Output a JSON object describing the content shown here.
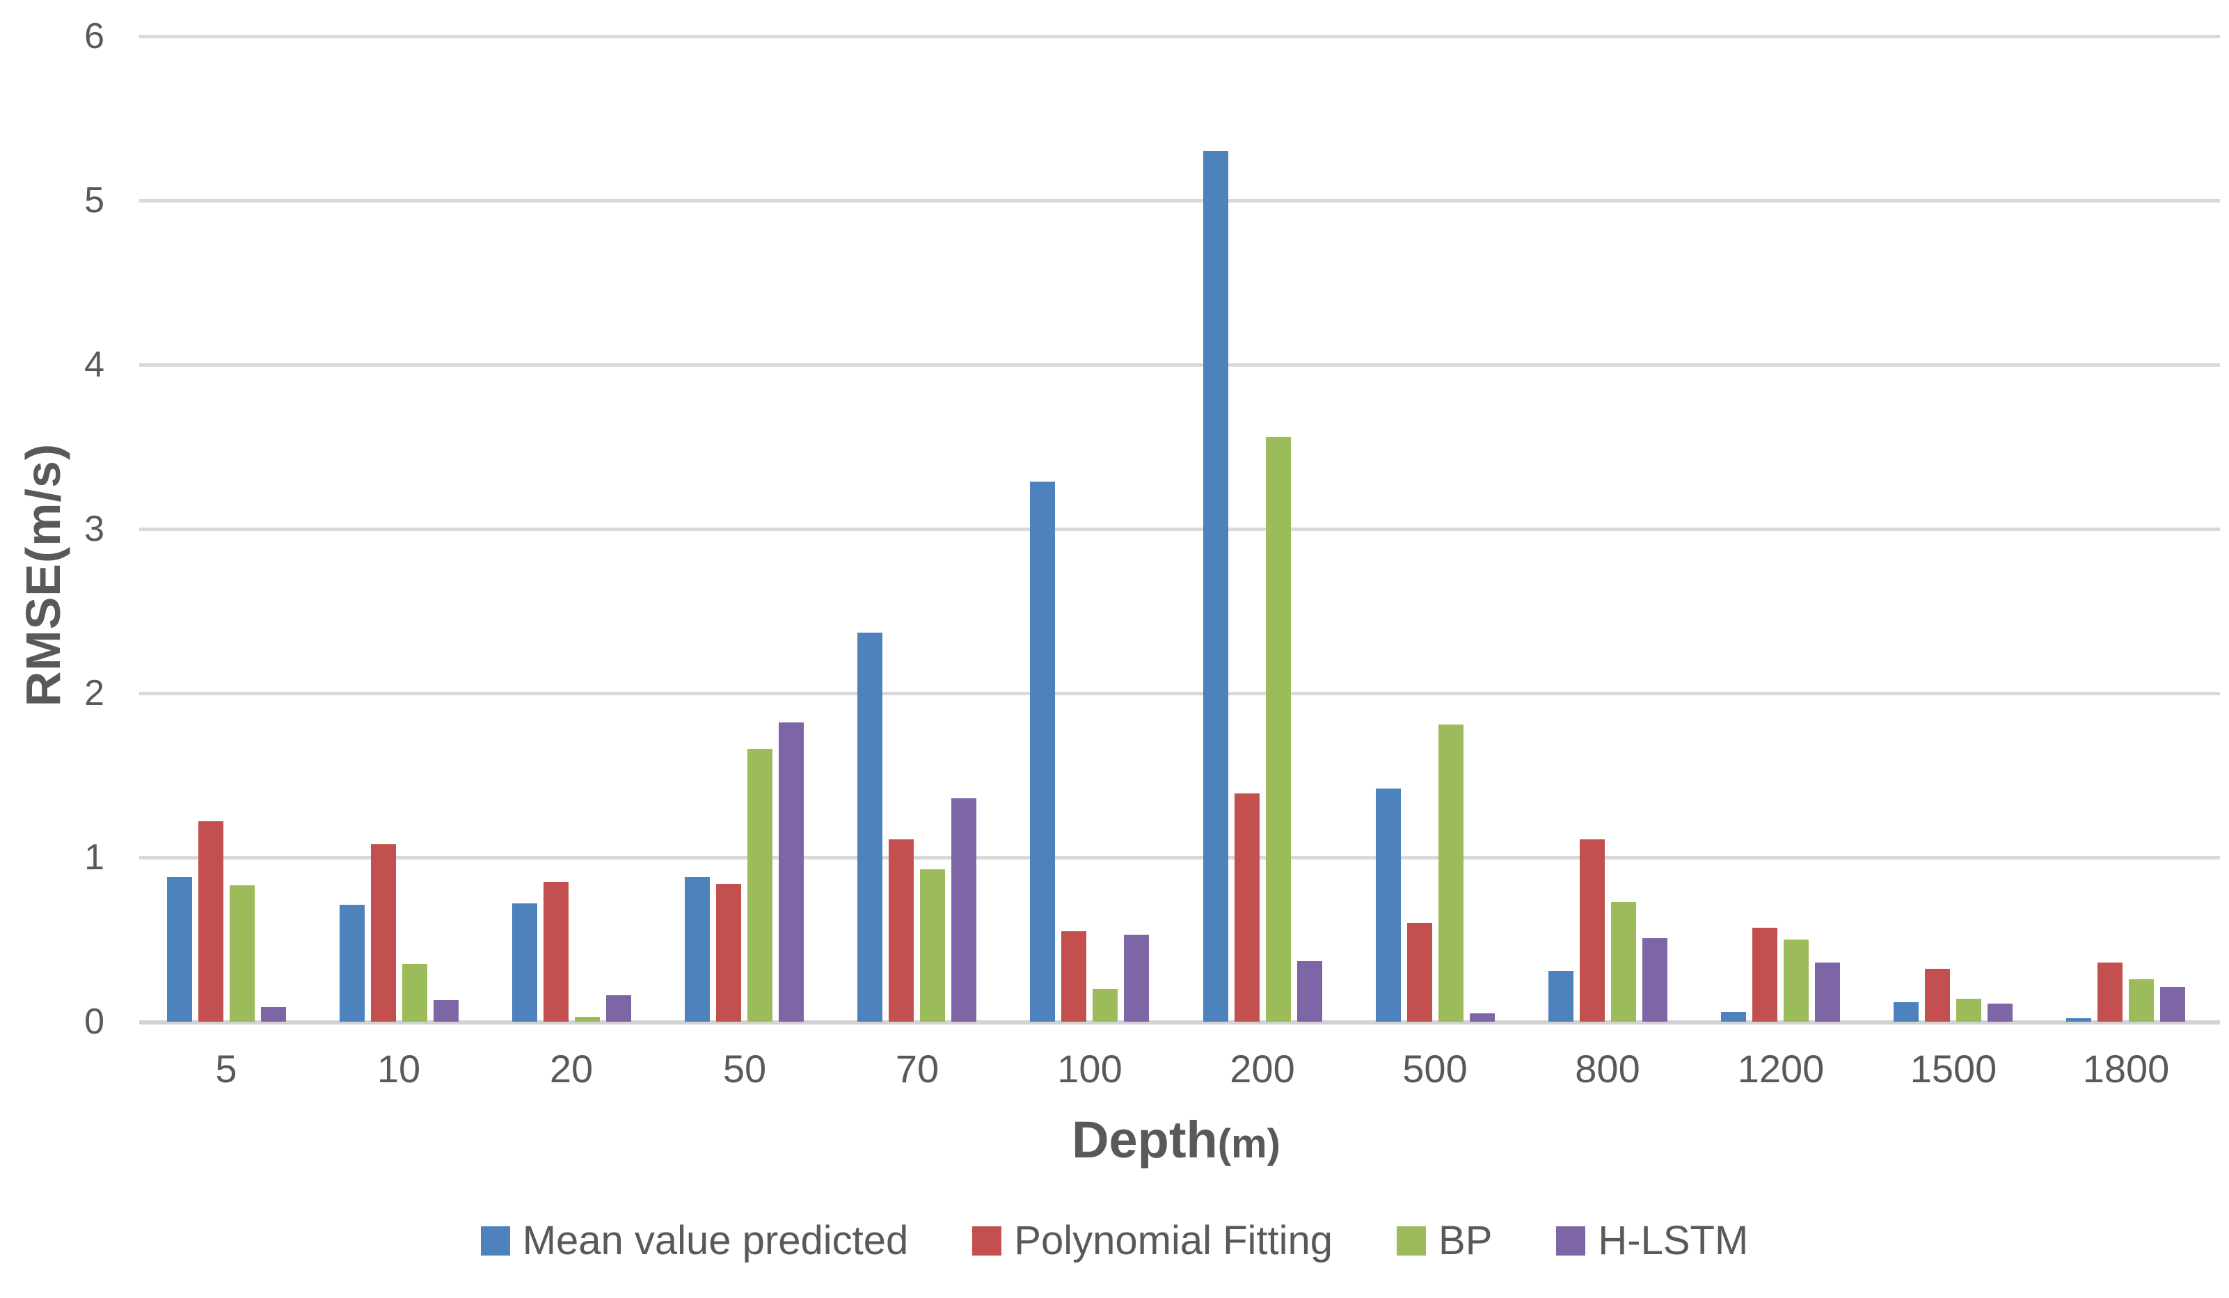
{
  "chart_data": {
    "type": "bar",
    "title": "",
    "xlabel": "Depth(m)",
    "xlabel_main": "Depth",
    "xlabel_unit": "(m)",
    "ylabel": "RMSE(m/s)",
    "categories": [
      "5",
      "10",
      "20",
      "50",
      "70",
      "100",
      "200",
      "500",
      "800",
      "1200",
      "1500",
      "1800"
    ],
    "series": [
      {
        "name": "Mean value predicted",
        "color": "#4D82BC",
        "values": [
          0.88,
          0.71,
          0.72,
          0.88,
          2.37,
          3.29,
          5.3,
          1.42,
          0.31,
          0.06,
          0.12,
          0.02
        ]
      },
      {
        "name": "Polynomial Fitting",
        "color": "#C3504E",
        "values": [
          1.22,
          1.08,
          0.85,
          0.84,
          1.11,
          0.55,
          1.39,
          0.6,
          1.11,
          0.57,
          0.32,
          0.36
        ]
      },
      {
        "name": "BP",
        "color": "#9CBC5B",
        "values": [
          0.83,
          0.35,
          0.03,
          1.66,
          0.93,
          0.2,
          3.56,
          1.81,
          0.73,
          0.5,
          0.14,
          0.26
        ]
      },
      {
        "name": "H-LSTM",
        "color": "#7D65A6",
        "values": [
          0.09,
          0.13,
          0.16,
          1.82,
          1.36,
          0.53,
          0.37,
          0.05,
          0.51,
          0.36,
          0.11,
          0.21
        ]
      }
    ],
    "y_ticks": [
      "0",
      "1",
      "2",
      "3",
      "4",
      "5",
      "6"
    ],
    "ylim": [
      0,
      6
    ],
    "grid": true,
    "legend_position": "bottom"
  },
  "colors": {
    "grid": "#D9D9D9",
    "baseline": "#D2D2D2",
    "text": "#595959"
  }
}
